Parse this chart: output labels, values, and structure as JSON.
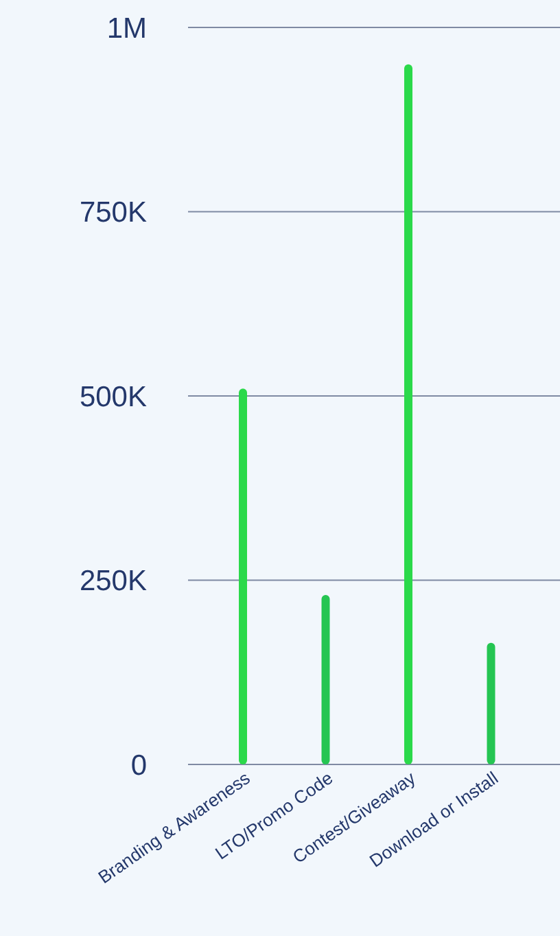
{
  "chart_data": {
    "type": "bar",
    "categories": [
      "Branding & Awareness",
      "LTO/Promo Code",
      "Contest/Giveaway",
      "Download or Install"
    ],
    "values": [
      510000,
      230000,
      950000,
      165000
    ],
    "colors": [
      "#2bd94a",
      "#25c552",
      "#2bd94a",
      "#25c552"
    ],
    "ylim": [
      0,
      1000000
    ],
    "yticks": [
      {
        "value": 0,
        "label": "0"
      },
      {
        "value": 250000,
        "label": "250K"
      },
      {
        "value": 500000,
        "label": "500K"
      },
      {
        "value": 750000,
        "label": "750K"
      },
      {
        "value": 1000000,
        "label": "1M"
      }
    ],
    "grid": "y"
  }
}
